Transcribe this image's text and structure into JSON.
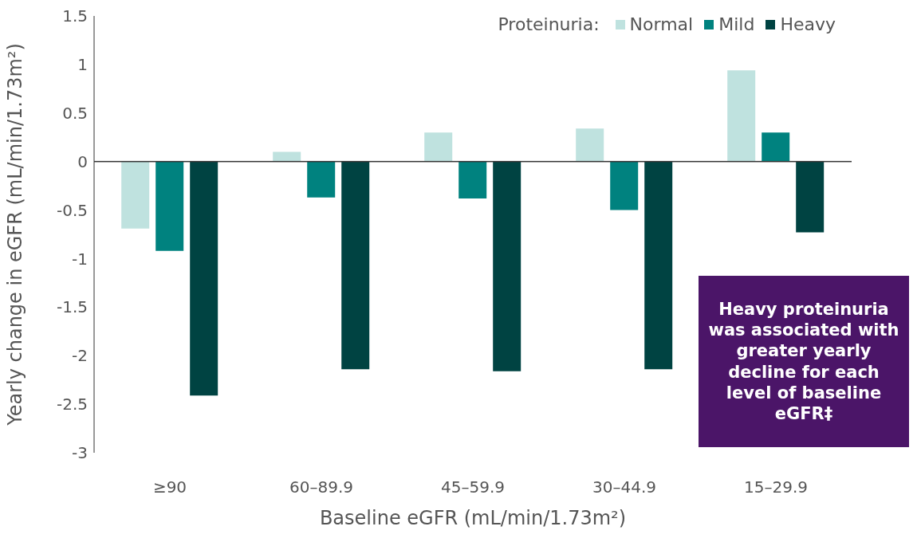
{
  "chart_data": {
    "type": "bar",
    "xlabel": "Baseline eGFR (mL/min/1.73m²)",
    "ylabel": "Yearly change in eGFR (mL/min/1.73m²)",
    "legend_title": "Proteinuria:",
    "categories": [
      "≥90",
      "60–89.9",
      "45–59.9",
      "30–44.9",
      "15–29.9"
    ],
    "series": [
      {
        "name": "Normal",
        "color": "#bfe2df",
        "values": [
          -0.69,
          0.1,
          0.3,
          0.34,
          0.94
        ]
      },
      {
        "name": "Mild",
        "color": "#00827f",
        "values": [
          -0.92,
          -0.37,
          -0.38,
          -0.5,
          0.3
        ]
      },
      {
        "name": "Heavy",
        "color": "#004342",
        "values": [
          -2.41,
          -2.14,
          -2.16,
          -2.14,
          -0.73
        ]
      }
    ],
    "ylim": [
      -3,
      1.5
    ],
    "yticks": [
      -3,
      -2.5,
      -2,
      -1.5,
      -1,
      -0.5,
      0,
      0.5,
      1,
      1.5
    ],
    "legend": "top right",
    "annotations": [
      "Heavy proteinuria was associated with greater yearly decline for each level of baseline eGFR‡"
    ]
  }
}
